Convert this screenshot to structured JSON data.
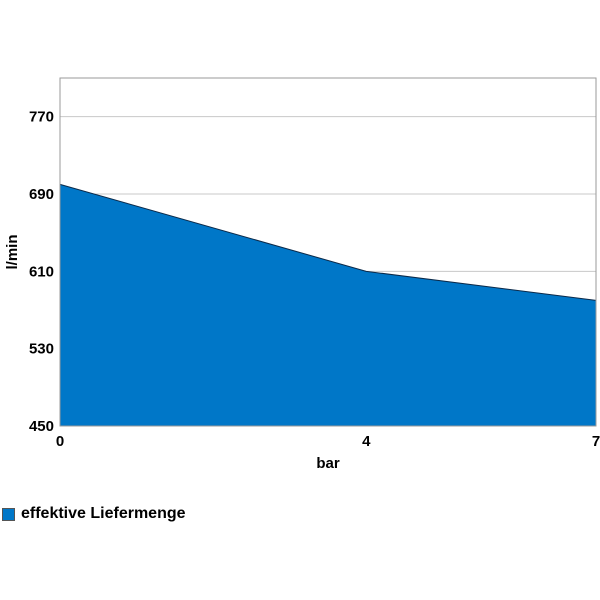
{
  "chart_data": {
    "type": "area",
    "x": [
      0,
      4,
      7
    ],
    "series": [
      {
        "name": "effektive Liefermenge",
        "values": [
          700,
          610,
          580
        ],
        "color": "#0077C8"
      }
    ],
    "xlabel": "bar",
    "ylabel": "l/min",
    "xlim": [
      0,
      7
    ],
    "ylim": [
      450,
      810
    ],
    "x_ticks": [
      "0",
      "4",
      "7"
    ],
    "y_ticks": [
      "450",
      "530",
      "610",
      "690",
      "770"
    ],
    "grid": "horizontal",
    "legend_position": "bottom-left"
  }
}
